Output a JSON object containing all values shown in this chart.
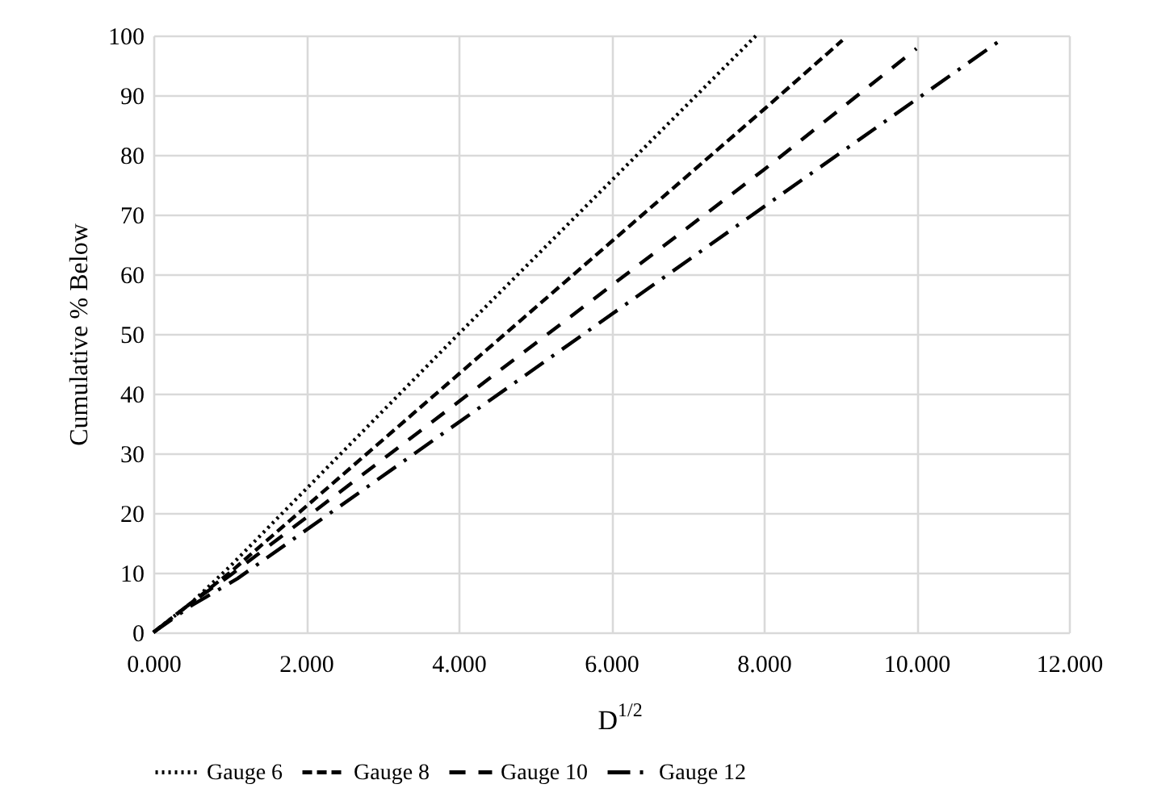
{
  "chart_data": {
    "type": "line",
    "xlabel": "D$^{1/2}$",
    "ylabel": "Cumulative % Below",
    "xlim": [
      0,
      12
    ],
    "xticks": [
      {
        "value": 0,
        "label": "0.000"
      },
      {
        "value": 2,
        "label": "2.000"
      },
      {
        "value": 4,
        "label": "4.000"
      },
      {
        "value": 6,
        "label": "6.000"
      },
      {
        "value": 8,
        "label": "8.000"
      },
      {
        "value": 10,
        "label": "10.000"
      },
      {
        "value": 12,
        "label": "12.000"
      }
    ],
    "ylim": [
      0,
      100
    ],
    "yticks": [
      0,
      10,
      20,
      30,
      40,
      50,
      60,
      70,
      80,
      90,
      100
    ],
    "grid": true,
    "legend": "bottom",
    "marker": "none",
    "series": [
      {
        "name": "Gauge 6",
        "color": "#000000",
        "line_style": "dotted",
        "x": [
          0,
          0.5,
          1,
          4,
          7.9
        ],
        "values": [
          0,
          5,
          11,
          50,
          100
        ]
      },
      {
        "name": "Gauge 8",
        "color": "#000000",
        "line_style": "dashed",
        "x": [
          0,
          0.5,
          1,
          8,
          9.03
        ],
        "values": [
          0,
          5,
          10,
          87.6,
          99.2
        ]
      },
      {
        "name": "Gauge 10",
        "color": "#000000",
        "line_style": "dashed",
        "x": [
          0,
          0.5,
          1,
          8,
          10
        ],
        "values": [
          0,
          5,
          9.5,
          77.5,
          97.8
        ]
      },
      {
        "name": "Gauge 12",
        "color": "#000000",
        "line_style": "dashed",
        "x": [
          0,
          0.5,
          1.1,
          8,
          11.1
        ],
        "values": [
          0,
          4.5,
          9,
          71.3,
          99.2
        ]
      }
    ]
  }
}
